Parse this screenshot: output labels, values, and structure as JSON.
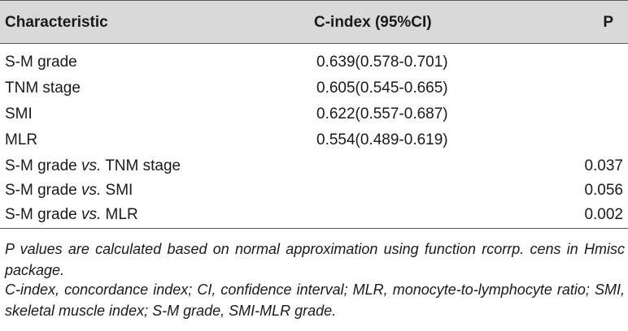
{
  "table": {
    "headers": {
      "characteristic": "Characteristic",
      "cindex": "C-index (95%CI)",
      "p": "P"
    },
    "rows": [
      {
        "characteristic": "S-M grade",
        "cindex": "0.639(0.578-0.701)",
        "p": ""
      },
      {
        "characteristic": "TNM stage",
        "cindex": "0.605(0.545-0.665)",
        "p": ""
      },
      {
        "characteristic": "SMI",
        "cindex": "0.622(0.557-0.687)",
        "p": ""
      },
      {
        "characteristic": "MLR",
        "cindex": "0.554(0.489-0.619)",
        "p": ""
      },
      {
        "characteristic_a": "S-M grade ",
        "characteristic_vs": "vs.",
        "characteristic_b": " TNM stage",
        "cindex": "",
        "p": "0.037"
      },
      {
        "characteristic_a": "S-M grade ",
        "characteristic_vs": "vs.",
        "characteristic_b": " SMI",
        "cindex": "",
        "p": "0.056"
      },
      {
        "characteristic_a": "S-M grade ",
        "characteristic_vs": "vs.",
        "characteristic_b": " MLR",
        "cindex": "",
        "p": "0.002"
      }
    ]
  },
  "footnotes": [
    "P values are calculated based on normal approximation using function rcorrp. cens in Hmisc package.",
    "C-index, concordance index; CI, confidence interval; MLR, monocyte-to-lymphocyte ratio; SMI, skeletal muscle index; S-M grade, SMI-MLR grade."
  ]
}
